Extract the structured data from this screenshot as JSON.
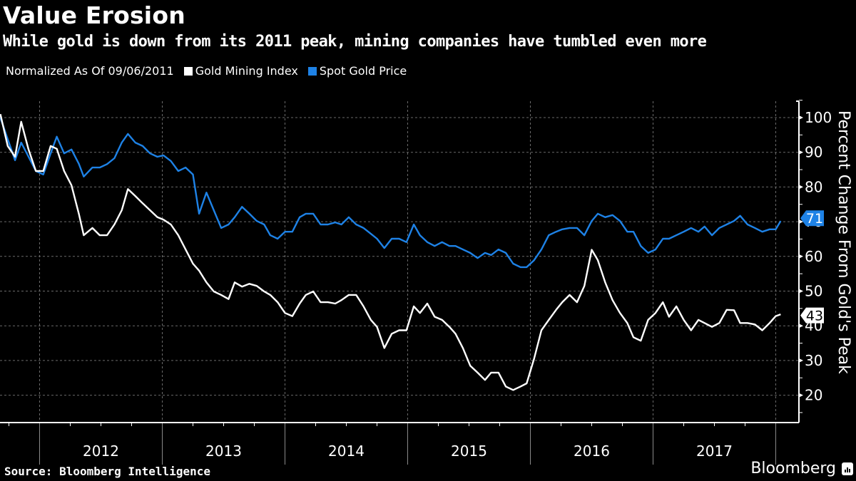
{
  "title": "Value Erosion",
  "subtitle": "While gold is down from its 2011 peak, mining companies have tumbled even more",
  "legend": {
    "note": "Normalized As Of 09/06/2011",
    "items": [
      {
        "label": "Gold Mining Index",
        "color": "#ffffff"
      },
      {
        "label": "Spot Gold Price",
        "color": "#1e82e6"
      }
    ]
  },
  "footer": {
    "source": "Source: Bloomberg Intelligence",
    "brand": "Bloomberg"
  },
  "chart_data": {
    "type": "line",
    "title": "Value Erosion",
    "xlabel": "",
    "ylabel": "Percent Change From Gold's Peak",
    "x_unit": "fractional year",
    "xlim": [
      2011.68,
      2018.07
    ],
    "ylim": [
      12,
      108
    ],
    "y_ticks": [
      20,
      30,
      40,
      50,
      60,
      70,
      80,
      90,
      100
    ],
    "x_tick_labels": [
      "2012",
      "2013",
      "2014",
      "2015",
      "2016",
      "2017"
    ],
    "x_year_boundaries": [
      2012,
      2013,
      2014,
      2015,
      2016,
      2017,
      2018
    ],
    "grid": true,
    "legend_position": "top-left",
    "end_labels": [
      {
        "series": "Spot Gold Price",
        "value": "71"
      },
      {
        "series": "Gold Mining Index",
        "value": "43"
      }
    ],
    "x": [
      2011.68,
      2011.74,
      2011.8,
      2011.85,
      2011.91,
      2011.97,
      2012.03,
      2012.09,
      2012.14,
      2012.2,
      2012.26,
      2012.32,
      2012.36,
      2012.43,
      2012.49,
      2012.55,
      2012.61,
      2012.67,
      2012.72,
      2012.78,
      2012.84,
      2012.9,
      2012.96,
      2013.01,
      2013.07,
      2013.13,
      2013.19,
      2013.25,
      2013.3,
      2013.36,
      2013.42,
      2013.48,
      2013.54,
      2013.59,
      2013.65,
      2013.71,
      2013.77,
      2013.83,
      2013.88,
      2013.94,
      2014.0,
      2014.06,
      2014.12,
      2014.17,
      2014.23,
      2014.29,
      2014.35,
      2014.41,
      2014.46,
      2014.52,
      2014.58,
      2014.64,
      2014.7,
      2014.75,
      2014.81,
      2014.87,
      2014.93,
      2014.99,
      2015.05,
      2015.1,
      2015.16,
      2015.22,
      2015.28,
      2015.34,
      2015.39,
      2015.45,
      2015.51,
      2015.57,
      2015.63,
      2015.68,
      2015.74,
      2015.8,
      2015.86,
      2015.92,
      2015.97,
      2016.03,
      2016.09,
      2016.15,
      2016.21,
      2016.26,
      2016.32,
      2016.38,
      2016.44,
      2016.5,
      2016.55,
      2016.61,
      2016.67,
      2016.73,
      2016.79,
      2016.84,
      2016.9,
      2016.96,
      2017.02,
      2017.08,
      2017.13,
      2017.19,
      2017.25,
      2017.31,
      2017.37,
      2017.42,
      2017.48,
      2017.54,
      2017.6,
      2017.66,
      2017.71,
      2017.77,
      2017.83,
      2017.89,
      2017.95,
      2018.0,
      2018.04
    ],
    "series": [
      {
        "name": "Spot Gold Price",
        "color": "#1e82e6",
        "last_value": 71,
        "values": [
          100.0,
          93.8,
          87.7,
          92.8,
          88.7,
          84.6,
          83.6,
          89.7,
          94.5,
          89.7,
          90.8,
          86.7,
          83.0,
          85.6,
          85.6,
          86.6,
          88.3,
          92.8,
          95.3,
          92.8,
          91.8,
          89.7,
          88.7,
          89.1,
          87.5,
          84.6,
          85.6,
          83.6,
          72.3,
          78.4,
          73.3,
          68.2,
          69.2,
          71.3,
          74.3,
          72.3,
          70.2,
          69.2,
          66.1,
          65.1,
          67.1,
          67.1,
          71.3,
          72.3,
          72.3,
          69.2,
          69.2,
          69.8,
          69.2,
          71.3,
          69.2,
          68.2,
          66.5,
          65.1,
          62.4,
          65.1,
          65.1,
          64.1,
          69.2,
          66.1,
          64.1,
          63.0,
          64.1,
          63.0,
          63.0,
          62.0,
          61.0,
          59.5,
          61.0,
          60.4,
          62.0,
          61.0,
          57.9,
          56.9,
          56.9,
          58.9,
          62.0,
          66.1,
          67.1,
          67.8,
          68.2,
          68.2,
          66.1,
          70.2,
          72.3,
          71.3,
          71.9,
          70.2,
          67.1,
          67.1,
          63.0,
          61.0,
          62.0,
          65.1,
          65.1,
          66.1,
          67.1,
          68.2,
          67.1,
          68.6,
          66.1,
          68.2,
          69.2,
          70.2,
          71.7,
          69.2,
          68.2,
          67.1,
          67.8,
          67.8,
          70.2
        ]
      },
      {
        "name": "Gold Mining Index",
        "color": "#ffffff",
        "last_value": 43,
        "values": [
          101.0,
          91.8,
          88.7,
          98.8,
          90.8,
          84.6,
          84.6,
          91.8,
          91.0,
          84.6,
          80.5,
          72.3,
          66.1,
          68.2,
          66.1,
          66.1,
          69.2,
          73.3,
          79.4,
          77.4,
          75.3,
          73.3,
          71.3,
          70.6,
          69.2,
          66.1,
          62.0,
          57.9,
          55.9,
          52.5,
          49.9,
          48.9,
          47.7,
          52.5,
          51.3,
          52.1,
          51.5,
          49.9,
          48.9,
          46.8,
          43.7,
          42.8,
          46.4,
          48.9,
          49.9,
          46.8,
          46.8,
          46.4,
          47.4,
          48.9,
          48.9,
          45.6,
          41.7,
          39.7,
          33.6,
          37.7,
          38.7,
          38.7,
          45.6,
          43.7,
          46.4,
          42.6,
          41.7,
          39.7,
          37.7,
          33.6,
          28.5,
          26.5,
          24.4,
          26.5,
          26.5,
          22.5,
          21.5,
          22.5,
          23.4,
          30.5,
          38.7,
          41.7,
          44.6,
          46.8,
          48.9,
          46.8,
          51.5,
          61.9,
          58.9,
          52.5,
          47.4,
          43.7,
          40.8,
          36.7,
          35.7,
          41.7,
          43.7,
          46.8,
          42.6,
          45.6,
          41.7,
          38.7,
          41.7,
          40.8,
          39.7,
          40.8,
          44.6,
          44.5,
          40.8,
          40.8,
          40.4,
          38.7,
          40.8,
          42.8,
          43.3
        ]
      }
    ]
  }
}
